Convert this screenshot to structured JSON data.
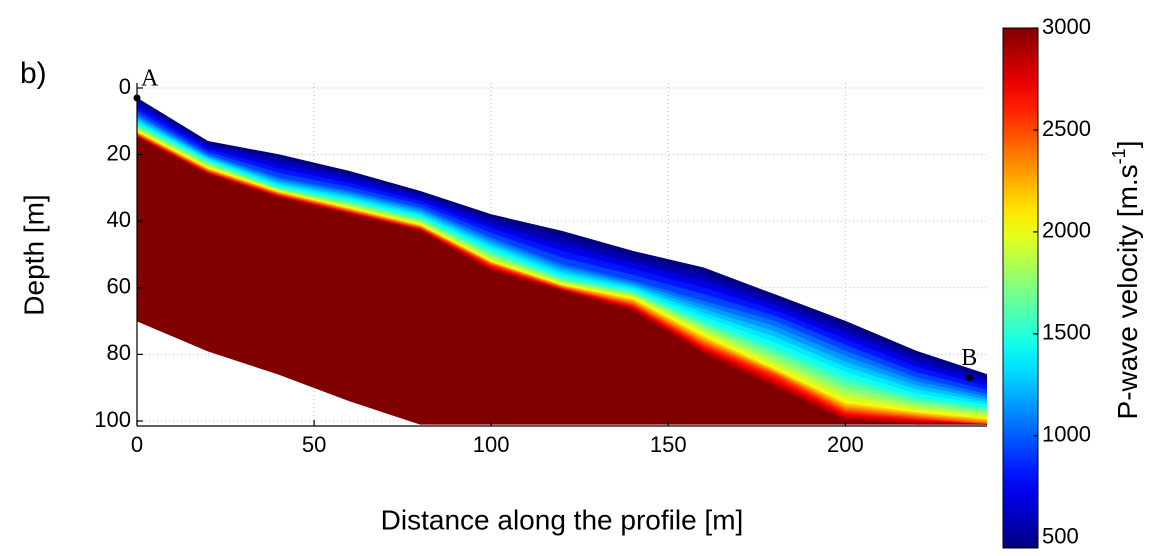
{
  "chart_data": {
    "type": "section",
    "panel_label": "b)",
    "xlabel": "Distance along the profile [m]",
    "ylabel": "Depth [m]",
    "colorbar_label": {
      "text": "P-wave velocity [m.s",
      "superscript": "-1",
      "suffix": "]"
    },
    "xlim": [
      0,
      240
    ],
    "ylim": [
      -1.5,
      101.5
    ],
    "y_reversed": true,
    "xticks": [
      0,
      50,
      100,
      150,
      200
    ],
    "yticks": [
      0,
      20,
      40,
      60,
      80,
      100
    ],
    "grid": true,
    "clim": [
      450,
      3000
    ],
    "cticks": [
      500,
      1000,
      1500,
      2000,
      2500,
      3000
    ],
    "colormap": "jet",
    "x": [
      0,
      20,
      40,
      60,
      80,
      100,
      120,
      140,
      160,
      180,
      200,
      220,
      240
    ],
    "layers": [
      {
        "velocity": 400,
        "depth": [
          3,
          16,
          20,
          25,
          31,
          38,
          43,
          49,
          54,
          62,
          70,
          79,
          86
        ]
      },
      {
        "velocity": 1000,
        "depth": [
          8,
          20,
          27,
          31,
          36,
          45,
          53,
          58,
          64,
          70,
          79,
          87,
          92
        ]
      },
      {
        "velocity": 1500,
        "depth": [
          11,
          22,
          30,
          34,
          39,
          49,
          57,
          61,
          70,
          78,
          87,
          93,
          96
        ]
      },
      {
        "velocity": 2000,
        "depth": [
          13,
          24,
          31,
          36,
          41,
          52,
          59,
          63,
          74,
          84,
          94,
          97,
          99
        ]
      },
      {
        "velocity": 2500,
        "depth": [
          14,
          25,
          32,
          37,
          42,
          53,
          60,
          65,
          77,
          86,
          97,
          99,
          101
        ]
      },
      {
        "velocity": 3000,
        "depth": [
          15,
          26,
          33,
          38,
          43,
          55,
          61,
          67,
          80,
          90,
          100,
          101,
          101
        ]
      }
    ],
    "bottom": [
      70,
      79,
      86,
      94,
      101,
      101,
      101,
      101,
      101,
      101,
      101,
      101,
      101
    ],
    "markers": [
      {
        "label": "A",
        "x": 0,
        "y": 3
      },
      {
        "label": "B",
        "x": 235,
        "y": 87
      }
    ]
  }
}
